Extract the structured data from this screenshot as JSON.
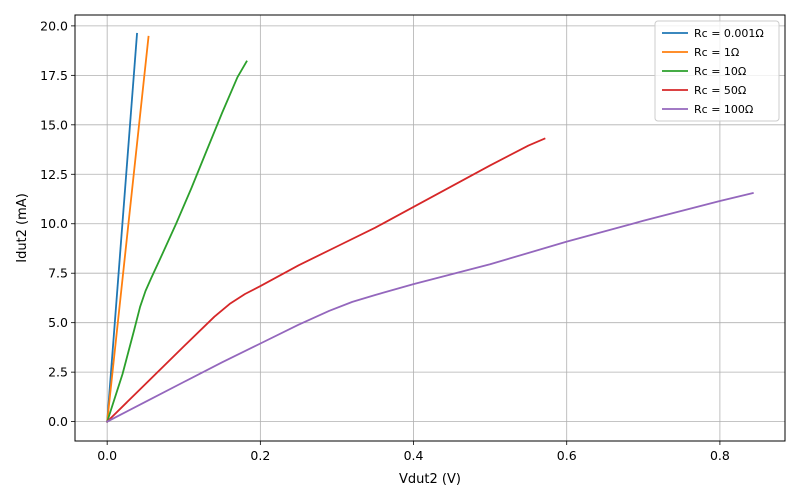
{
  "chart_data": {
    "type": "line",
    "title": "",
    "xlabel": "Vdut2 (V)",
    "ylabel": "Idut2 (mA)",
    "xlim": [
      -0.042,
      0.885
    ],
    "ylim": [
      -0.98,
      20.55
    ],
    "xticks": [
      0.0,
      0.2,
      0.4,
      0.6,
      0.8
    ],
    "xtick_labels": [
      "0.0",
      "0.2",
      "0.4",
      "0.6",
      "0.8"
    ],
    "yticks": [
      0.0,
      2.5,
      5.0,
      7.5,
      10.0,
      12.5,
      15.0,
      17.5,
      20.0
    ],
    "ytick_labels": [
      "0.0",
      "2.5",
      "5.0",
      "7.5",
      "10.0",
      "12.5",
      "15.0",
      "17.5",
      "20.0"
    ],
    "grid": true,
    "legend_position": "top-right",
    "series": [
      {
        "name": "Rc = 0.001Ω",
        "color": "#1f77b4",
        "points": [
          [
            0.0,
            0.0
          ],
          [
            0.039,
            19.6
          ]
        ]
      },
      {
        "name": "Rc = 1Ω",
        "color": "#ff7f0e",
        "points": [
          [
            0.0,
            0.0
          ],
          [
            0.054,
            19.45
          ]
        ]
      },
      {
        "name": "Rc = 10Ω",
        "color": "#2ca02c",
        "points": [
          [
            0.0,
            0.0
          ],
          [
            0.02,
            2.4
          ],
          [
            0.035,
            4.6
          ],
          [
            0.043,
            5.8
          ],
          [
            0.05,
            6.6
          ],
          [
            0.058,
            7.3
          ],
          [
            0.07,
            8.3
          ],
          [
            0.09,
            10.0
          ],
          [
            0.11,
            11.8
          ],
          [
            0.13,
            13.7
          ],
          [
            0.15,
            15.6
          ],
          [
            0.17,
            17.4
          ],
          [
            0.182,
            18.2
          ]
        ]
      },
      {
        "name": "Rc = 50Ω",
        "color": "#d62728",
        "points": [
          [
            0.0,
            0.0
          ],
          [
            0.05,
            1.9
          ],
          [
            0.1,
            3.8
          ],
          [
            0.14,
            5.3
          ],
          [
            0.16,
            5.95
          ],
          [
            0.18,
            6.45
          ],
          [
            0.2,
            6.85
          ],
          [
            0.25,
            7.9
          ],
          [
            0.3,
            8.85
          ],
          [
            0.35,
            9.8
          ],
          [
            0.4,
            10.85
          ],
          [
            0.45,
            11.9
          ],
          [
            0.5,
            12.95
          ],
          [
            0.55,
            13.95
          ],
          [
            0.571,
            14.3
          ]
        ]
      },
      {
        "name": "Rc = 100Ω",
        "color": "#9467bd",
        "points": [
          [
            0.0,
            0.0
          ],
          [
            0.05,
            1.0
          ],
          [
            0.1,
            2.0
          ],
          [
            0.15,
            3.0
          ],
          [
            0.2,
            3.95
          ],
          [
            0.25,
            4.9
          ],
          [
            0.29,
            5.6
          ],
          [
            0.32,
            6.05
          ],
          [
            0.35,
            6.4
          ],
          [
            0.4,
            6.95
          ],
          [
            0.5,
            7.95
          ],
          [
            0.6,
            9.1
          ],
          [
            0.7,
            10.15
          ],
          [
            0.8,
            11.15
          ],
          [
            0.843,
            11.55
          ]
        ]
      }
    ]
  }
}
